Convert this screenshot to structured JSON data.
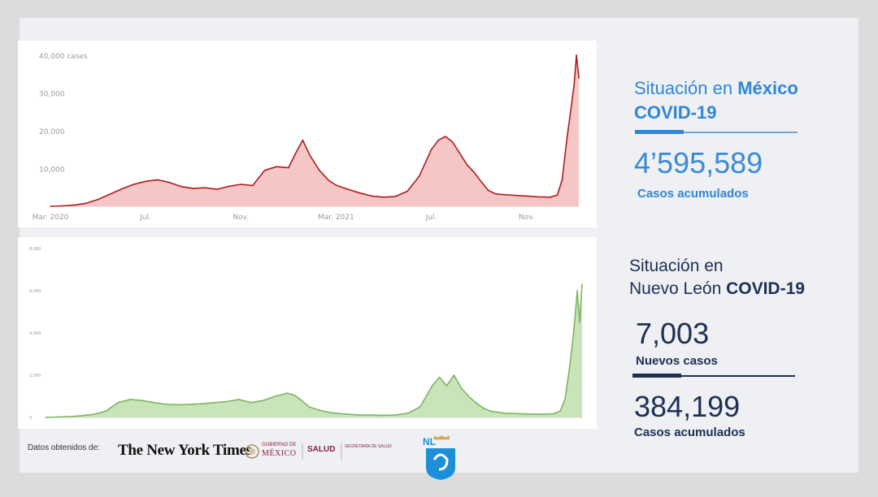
{
  "chart_data": [
    {
      "type": "area",
      "ylim": [
        0,
        40000
      ],
      "yticks": [
        {
          "value": 40000,
          "label": "40,000 cases"
        },
        {
          "value": 30000,
          "label": "30,000"
        },
        {
          "value": 20000,
          "label": "20,000"
        },
        {
          "value": 10000,
          "label": "10,000"
        }
      ],
      "xticks": [
        {
          "x": 0,
          "label": "Mar. 2020"
        },
        {
          "x": 4,
          "label": "Jul."
        },
        {
          "x": 8,
          "label": "Nov."
        },
        {
          "x": 12,
          "label": "Mar. 2021"
        },
        {
          "x": 16,
          "label": "Jul."
        },
        {
          "x": 20,
          "label": "Nov."
        }
      ],
      "xlim": [
        0,
        22.2
      ],
      "x": [
        0,
        0.5,
        1,
        1.5,
        2,
        2.5,
        3,
        3.5,
        4,
        4.5,
        5,
        5.5,
        6,
        6.5,
        7,
        7.5,
        8,
        8.5,
        9,
        9.5,
        10,
        10.3,
        10.6,
        10.9,
        11.3,
        11.7,
        12,
        12.5,
        13,
        13.5,
        14,
        14.5,
        15,
        15.5,
        16,
        16.3,
        16.6,
        16.9,
        17.2,
        17.5,
        17.8,
        18.1,
        18.4,
        18.7,
        19,
        19.5,
        20,
        20.5,
        21,
        21.3,
        21.5,
        21.7,
        21.85,
        22,
        22.1,
        22.2
      ],
      "values": [
        0,
        100,
        300,
        800,
        1800,
        3200,
        4600,
        5800,
        6600,
        7000,
        6300,
        5200,
        4700,
        4900,
        4500,
        5300,
        5800,
        5500,
        9500,
        10500,
        10200,
        14000,
        17500,
        13500,
        9500,
        6800,
        5600,
        4500,
        3500,
        2700,
        2400,
        2600,
        4000,
        8000,
        15000,
        17500,
        18500,
        17000,
        14000,
        11000,
        9000,
        6500,
        4200,
        3300,
        3100,
        2900,
        2700,
        2500,
        2400,
        3000,
        7000,
        18000,
        25000,
        32000,
        40000,
        34000
      ],
      "colors": {
        "line": "#b01c1c",
        "fill": "#f4c6c6"
      },
      "grid": false
    },
    {
      "type": "area",
      "ylim": [
        0,
        8000
      ],
      "yticks": [
        {
          "value": 8000,
          "label": "8,000"
        },
        {
          "value": 6000,
          "label": "6,000"
        },
        {
          "value": 4000,
          "label": "4,000"
        },
        {
          "value": 2000,
          "label": "2,000"
        },
        {
          "value": 0,
          "label": "0"
        }
      ],
      "xlim": [
        0,
        22.2
      ],
      "x": [
        0,
        0.5,
        1,
        1.5,
        2,
        2.5,
        3,
        3.5,
        4,
        4.5,
        5,
        5.5,
        6,
        6.5,
        7,
        7.5,
        8,
        8.5,
        9,
        9.5,
        10,
        10.3,
        10.6,
        10.9,
        11.3,
        11.7,
        12,
        12.5,
        13,
        13.5,
        14,
        14.5,
        15,
        15.5,
        16,
        16.3,
        16.6,
        16.9,
        17.2,
        17.5,
        17.8,
        18.1,
        18.4,
        18.7,
        19,
        19.5,
        20,
        20.5,
        21,
        21.3,
        21.5,
        21.7,
        21.85,
        22,
        22.1,
        22.2
      ],
      "values": [
        0,
        20,
        40,
        80,
        150,
        300,
        700,
        850,
        800,
        700,
        620,
        600,
        620,
        650,
        700,
        750,
        850,
        700,
        800,
        1000,
        1150,
        1050,
        800,
        500,
        350,
        250,
        200,
        150,
        120,
        110,
        100,
        120,
        200,
        500,
        1500,
        1900,
        1500,
        2000,
        1400,
        1000,
        700,
        450,
        300,
        250,
        200,
        180,
        160,
        150,
        170,
        300,
        900,
        2500,
        4000,
        6000,
        4500,
        6300
      ],
      "colors": {
        "line": "#7cb562",
        "fill": "#c9e4b9"
      },
      "grid": false
    }
  ],
  "mexico": {
    "title_prefix": "Situación en ",
    "title_bold": "México",
    "subtitle": "COVID-19",
    "total": "4’595,589",
    "total_label": "Casos acumulados"
  },
  "nuevo_leon": {
    "title_line1": "Situación en",
    "title_line2_prefix": "Nuevo León ",
    "title_line2_bold": "COVID-19",
    "new_cases": "7,003",
    "new_cases_label": "Nuevos casos",
    "total": "384,199",
    "total_label": "Casos acumulados"
  },
  "footer": {
    "source_label": "Datos obtenidos de:",
    "nyt_logo": "The New York Times",
    "gob_small": "GOBIERNO DE",
    "gob_mexico": "MÉXICO",
    "salud": "SALUD",
    "salud_sub": "SECRETARÍA DE SALUD",
    "nl_badge": "NL"
  }
}
